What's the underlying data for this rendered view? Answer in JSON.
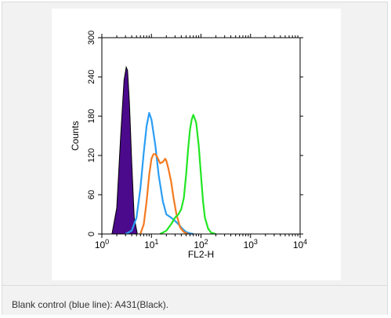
{
  "caption": "Blank control (blue line): A431(Black).",
  "colors": {
    "card_background": "#f2f2f2",
    "filled_histogram": "#4b0a8c",
    "blue_line": "#2a9df4",
    "orange_line": "#f47a20",
    "green_line": "#22e622"
  },
  "chart_data": {
    "type": "histogram",
    "xlabel": "FL2-H",
    "ylabel": "Counts",
    "x_scale": "log",
    "xlim": [
      1,
      10000
    ],
    "ylim": [
      0,
      300
    ],
    "x_ticks": [
      {
        "value": 1,
        "base": "10",
        "exp": "0"
      },
      {
        "value": 10,
        "base": "10",
        "exp": "1"
      },
      {
        "value": 100,
        "base": "10",
        "exp": "2"
      },
      {
        "value": 1000,
        "base": "10",
        "exp": "3"
      },
      {
        "value": 10000,
        "base": "10",
        "exp": "4"
      }
    ],
    "y_ticks": [
      0,
      60,
      120,
      180,
      240,
      300
    ],
    "series": [
      {
        "style": "filled",
        "color": "#4b0a8c",
        "x": [
          1.6,
          2.0,
          2.4,
          2.8,
          3.1,
          3.3,
          3.6,
          4.0,
          4.5,
          5.2
        ],
        "y": [
          0,
          40,
          150,
          235,
          255,
          250,
          200,
          110,
          25,
          0
        ]
      },
      {
        "style": "line",
        "color": "#2a9df4",
        "x": [
          3,
          4,
          5,
          6,
          7,
          8,
          9,
          10,
          12,
          14,
          17,
          20,
          25,
          30,
          35,
          40,
          45,
          50,
          60,
          70
        ],
        "y": [
          0,
          5,
          25,
          70,
          125,
          165,
          185,
          175,
          135,
          90,
          50,
          30,
          25,
          20,
          15,
          10,
          6,
          3,
          1,
          0
        ]
      },
      {
        "style": "line",
        "color": "#f47a20",
        "x": [
          6,
          7,
          8,
          9,
          10,
          11,
          12,
          13,
          15,
          17,
          19,
          20,
          22,
          25,
          28,
          32,
          38,
          45,
          55
        ],
        "y": [
          0,
          15,
          50,
          90,
          115,
          122,
          122,
          118,
          108,
          110,
          115,
          112,
          100,
          80,
          55,
          30,
          10,
          3,
          0
        ]
      },
      {
        "style": "line",
        "color": "#22e622",
        "x": [
          15,
          20,
          25,
          30,
          35,
          40,
          45,
          50,
          55,
          60,
          65,
          70,
          80,
          90,
          100,
          110,
          120,
          140,
          160,
          200
        ],
        "y": [
          0,
          5,
          15,
          25,
          30,
          38,
          55,
          90,
          130,
          160,
          175,
          182,
          170,
          135,
          90,
          50,
          25,
          8,
          2,
          0
        ]
      }
    ]
  }
}
